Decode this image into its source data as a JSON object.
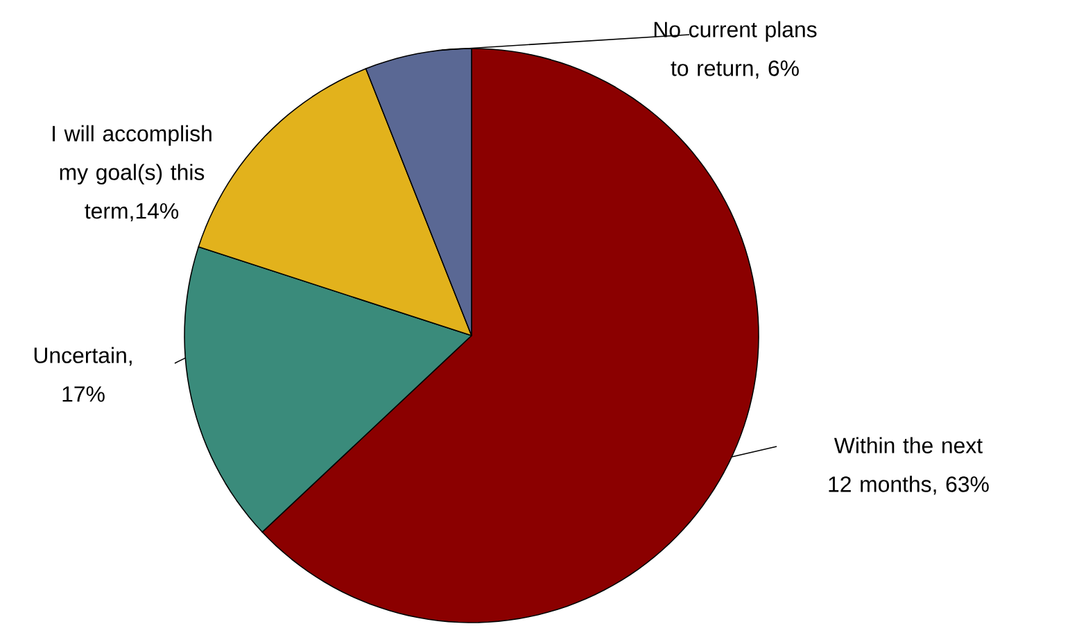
{
  "chart_data": {
    "type": "pie",
    "categories": [
      "Within the next 12 months, 63%",
      "Uncertain, 17%",
      "I will accomplish my goal(s) this term,14%",
      "No current plans to return, 6%"
    ],
    "values": [
      63,
      17,
      14,
      6
    ],
    "colors": [
      "#8b0000",
      "#3a8b7b",
      "#e2b21c",
      "#5a6894"
    ]
  }
}
